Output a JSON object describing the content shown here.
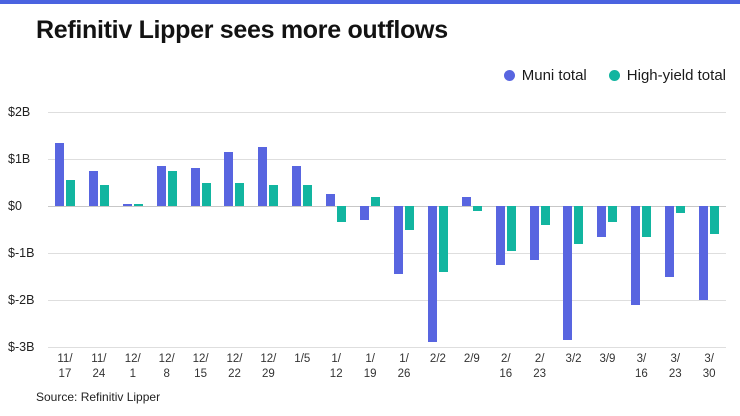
{
  "chart_data": {
    "type": "bar",
    "title": "Refinitiv Lipper sees more outflows",
    "source": "Source: Refinitiv Lipper",
    "categories": [
      "11/\n17",
      "11/\n24",
      "12/\n1",
      "12/\n8",
      "12/\n15",
      "12/\n22",
      "12/\n29",
      "1/5",
      "1/\n12",
      "1/\n19",
      "1/\n26",
      "2/2",
      "2/9",
      "2/\n16",
      "2/\n23",
      "3/2",
      "3/9",
      "3/\n16",
      "3/\n23",
      "3/\n30"
    ],
    "series": [
      {
        "name": "Muni total",
        "color": "#5865e0",
        "values": [
          1.35,
          0.75,
          0.05,
          0.85,
          0.8,
          1.15,
          1.25,
          0.85,
          0.25,
          -0.3,
          -1.45,
          -2.9,
          0.2,
          -1.25,
          -1.15,
          -2.85,
          -0.65,
          -2.1,
          -1.5,
          -2.0
        ]
      },
      {
        "name": "High-yield total",
        "color": "#12b5a0",
        "values": [
          0.55,
          0.45,
          0.05,
          0.75,
          0.5,
          0.5,
          0.45,
          0.45,
          -0.35,
          0.2,
          -0.5,
          -1.4,
          -0.1,
          -0.95,
          -0.4,
          -0.8,
          -0.35,
          -0.65,
          -0.15,
          -0.6
        ]
      }
    ],
    "y_ticks": [
      {
        "label": "$2B",
        "value": 2
      },
      {
        "label": "$1B",
        "value": 1
      },
      {
        "label": "$0",
        "value": 0
      },
      {
        "label": "$-1B",
        "value": -1
      },
      {
        "label": "$-2B",
        "value": -2
      },
      {
        "label": "$-3B",
        "value": -3
      }
    ],
    "ylim": [
      -3,
      2
    ],
    "legend_position": "top-right",
    "grid": true,
    "accent_color": "#4a63e0"
  }
}
